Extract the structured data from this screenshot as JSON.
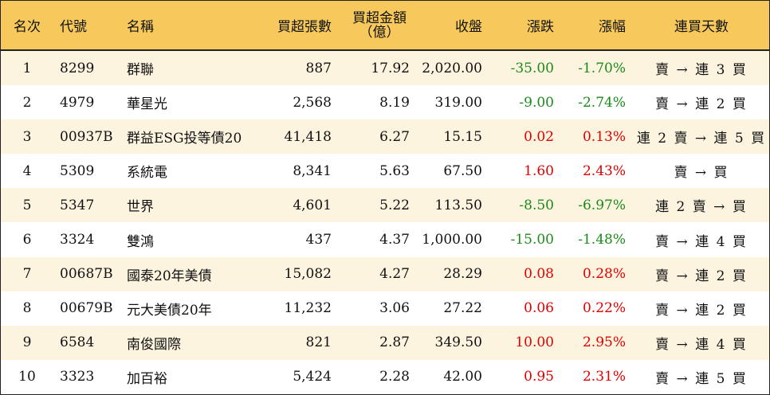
{
  "headers": {
    "rank": "名次",
    "code": "代號",
    "name": "名稱",
    "volume": "買超張數",
    "amount_line1": "買超金額",
    "amount_line2": "（億）",
    "close": "收盤",
    "change": "漲跌",
    "percent": "漲幅",
    "streak": "連買天數"
  },
  "colors": {
    "header_bg": "#f7c95c",
    "odd_row_bg": "#fdf4e0",
    "up": "#e00000",
    "down": "#1a8a1a"
  },
  "rows": [
    {
      "rank": "1",
      "code": "8299",
      "name": "群聯",
      "volume": "887",
      "amount": "17.92",
      "close": "2,020.00",
      "change": "-35.00",
      "percent": "-1.70%",
      "dir": "down",
      "streak": "賣 → 連 3 買"
    },
    {
      "rank": "2",
      "code": "4979",
      "name": "華星光",
      "volume": "2,568",
      "amount": "8.19",
      "close": "319.00",
      "change": "-9.00",
      "percent": "-2.74%",
      "dir": "down",
      "streak": "賣 → 連 2 買"
    },
    {
      "rank": "3",
      "code": "00937B",
      "name": "群益ESG投等債20",
      "volume": "41,418",
      "amount": "6.27",
      "close": "15.15",
      "change": "0.02",
      "percent": "0.13%",
      "dir": "up",
      "streak": "連 2 賣 → 連 5 買"
    },
    {
      "rank": "4",
      "code": "5309",
      "name": "系統電",
      "volume": "8,341",
      "amount": "5.63",
      "close": "67.50",
      "change": "1.60",
      "percent": "2.43%",
      "dir": "up",
      "streak": "賣 → 買"
    },
    {
      "rank": "5",
      "code": "5347",
      "name": "世界",
      "volume": "4,601",
      "amount": "5.22",
      "close": "113.50",
      "change": "-8.50",
      "percent": "-6.97%",
      "dir": "down",
      "streak": "連 2 賣 → 買"
    },
    {
      "rank": "6",
      "code": "3324",
      "name": "雙鴻",
      "volume": "437",
      "amount": "4.37",
      "close": "1,000.00",
      "change": "-15.00",
      "percent": "-1.48%",
      "dir": "down",
      "streak": "賣 → 連 4 買"
    },
    {
      "rank": "7",
      "code": "00687B",
      "name": "國泰20年美債",
      "volume": "15,082",
      "amount": "4.27",
      "close": "28.29",
      "change": "0.08",
      "percent": "0.28%",
      "dir": "up",
      "streak": "賣 → 連 2 買"
    },
    {
      "rank": "8",
      "code": "00679B",
      "name": "元大美債20年",
      "volume": "11,232",
      "amount": "3.06",
      "close": "27.22",
      "change": "0.06",
      "percent": "0.22%",
      "dir": "up",
      "streak": "賣 → 連 2 買"
    },
    {
      "rank": "9",
      "code": "6584",
      "name": "南俊國際",
      "volume": "821",
      "amount": "2.87",
      "close": "349.50",
      "change": "10.00",
      "percent": "2.95%",
      "dir": "up",
      "streak": "賣 → 連 4 買"
    },
    {
      "rank": "10",
      "code": "3323",
      "name": "加百裕",
      "volume": "5,424",
      "amount": "2.28",
      "close": "42.00",
      "change": "0.95",
      "percent": "2.31%",
      "dir": "up",
      "streak": "賣 → 連 5 買"
    }
  ]
}
